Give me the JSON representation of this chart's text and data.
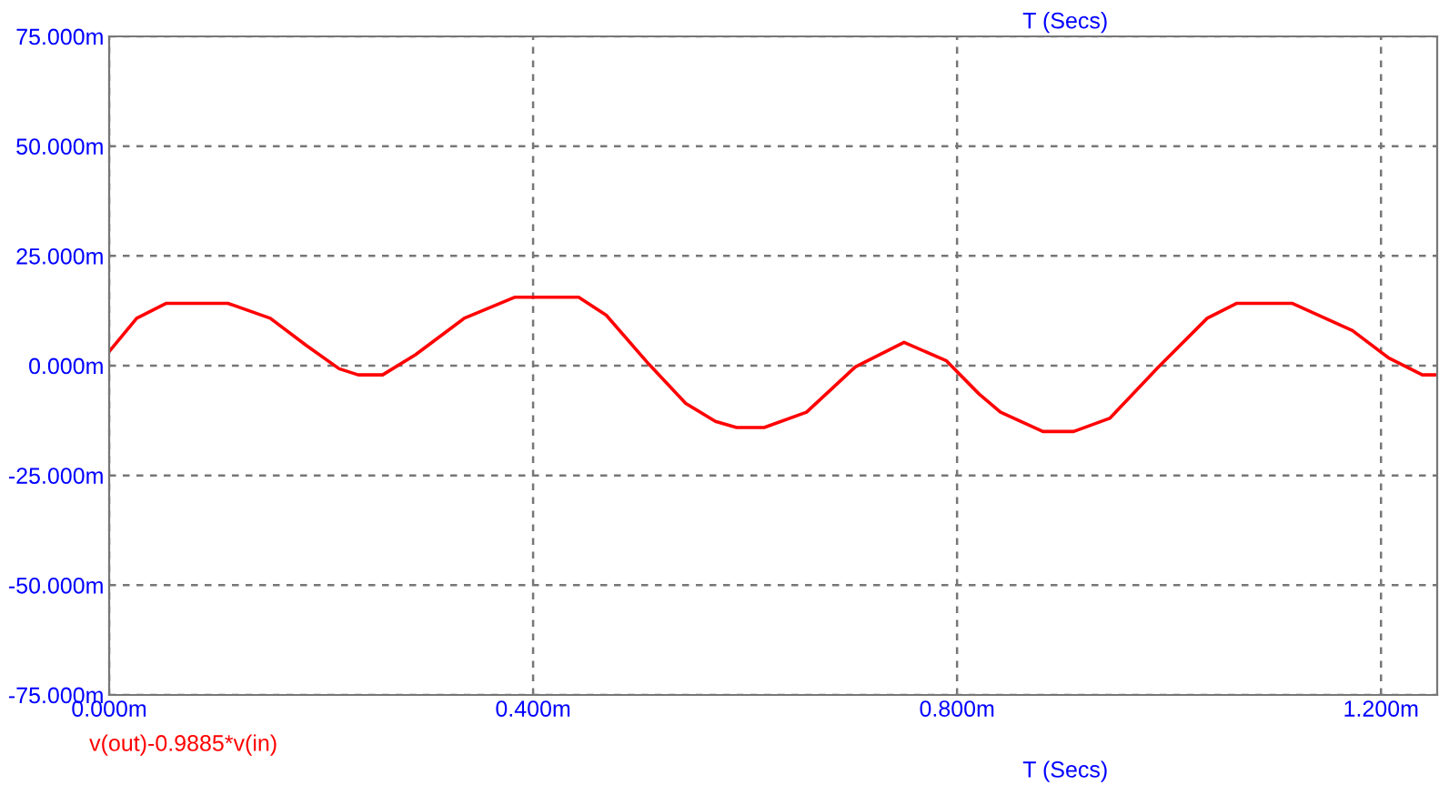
{
  "chart_data": {
    "type": "line",
    "xlabel": "T (Secs)",
    "x2label": "T (Secs)",
    "x": [
      0,
      0.026,
      0.054,
      0.112,
      0.152,
      0.186,
      0.217,
      0.235,
      0.258,
      0.289,
      0.335,
      0.383,
      0.443,
      0.469,
      0.509,
      0.544,
      0.572,
      0.592,
      0.618,
      0.658,
      0.704,
      0.75,
      0.79,
      0.821,
      0.841,
      0.881,
      0.91,
      0.944,
      0.99,
      1.036,
      1.064,
      1.116,
      1.173,
      1.207,
      1.239,
      1.253
    ],
    "series": [
      {
        "name": "v(out)-0.9885*v(in)",
        "color": "#ff0000",
        "values": [
          3.2,
          10.8,
          14.2,
          14.2,
          10.8,
          4.6,
          -0.7,
          -2.1,
          -2.1,
          2.5,
          10.8,
          15.6,
          15.6,
          11.5,
          0.4,
          -8.6,
          -12.7,
          -14.1,
          -14.1,
          -10.6,
          -0.3,
          5.3,
          1.1,
          -6.5,
          -10.6,
          -15.0,
          -15.0,
          -12.0,
          -0.3,
          10.8,
          14.2,
          14.2,
          8.0,
          1.8,
          -2.1,
          -2.1
        ]
      }
    ],
    "xlim": [
      0,
      1.253
    ],
    "xticks": [
      {
        "value": 0,
        "label": "0.000m"
      },
      {
        "value": 0.4,
        "label": "0.400m"
      },
      {
        "value": 0.8,
        "label": "0.800m"
      },
      {
        "value": 1.2,
        "label": "1.200m"
      }
    ],
    "ylim": [
      -75,
      75
    ],
    "yticks": [
      {
        "value": -75,
        "label": "-75.000m"
      },
      {
        "value": -50,
        "label": "-50.000m"
      },
      {
        "value": -25,
        "label": "-25.000m"
      },
      {
        "value": 0,
        "label": "0.000m"
      },
      {
        "value": 25,
        "label": "25.000m"
      },
      {
        "value": 50,
        "label": "50.000m"
      },
      {
        "value": 75,
        "label": "75.000m"
      }
    ],
    "grid": true,
    "legend": "bottom left",
    "line_style": "solid",
    "marker": "none"
  }
}
